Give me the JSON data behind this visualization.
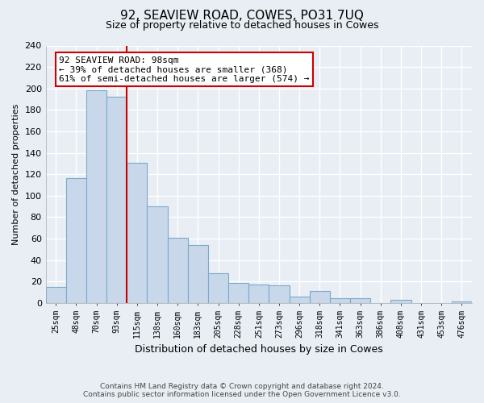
{
  "title": "92, SEAVIEW ROAD, COWES, PO31 7UQ",
  "subtitle": "Size of property relative to detached houses in Cowes",
  "xlabel": "Distribution of detached houses by size in Cowes",
  "ylabel": "Number of detached properties",
  "bar_labels": [
    "25sqm",
    "48sqm",
    "70sqm",
    "93sqm",
    "115sqm",
    "138sqm",
    "160sqm",
    "183sqm",
    "205sqm",
    "228sqm",
    "251sqm",
    "273sqm",
    "296sqm",
    "318sqm",
    "341sqm",
    "363sqm",
    "386sqm",
    "408sqm",
    "431sqm",
    "453sqm",
    "476sqm"
  ],
  "bar_values": [
    15,
    116,
    198,
    192,
    131,
    90,
    61,
    54,
    28,
    19,
    17,
    16,
    6,
    11,
    4,
    4,
    0,
    3,
    0,
    0,
    1
  ],
  "bar_color": "#c8d8ea",
  "bar_edge_color": "#7aaac8",
  "vline_color": "#cc0000",
  "annotation_line1": "92 SEAVIEW ROAD: 98sqm",
  "annotation_line2": "← 39% of detached houses are smaller (368)",
  "annotation_line3": "61% of semi-detached houses are larger (574) →",
  "annotation_box_color": "white",
  "annotation_box_edge": "#cc0000",
  "ylim": [
    0,
    240
  ],
  "yticks": [
    0,
    20,
    40,
    60,
    80,
    100,
    120,
    140,
    160,
    180,
    200,
    220,
    240
  ],
  "footer_line1": "Contains HM Land Registry data © Crown copyright and database right 2024.",
  "footer_line2": "Contains public sector information licensed under the Open Government Licence v3.0.",
  "background_color": "#e8eef4",
  "grid_color": "white"
}
